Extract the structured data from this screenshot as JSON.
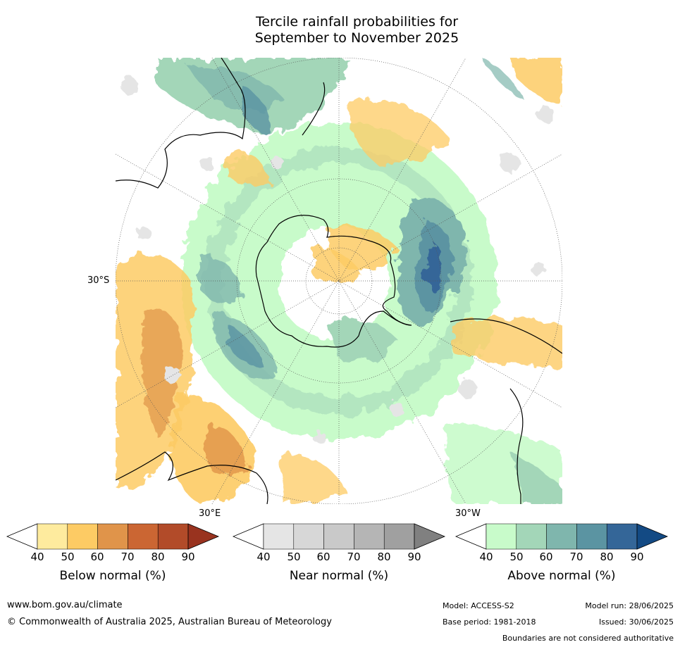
{
  "title_line1": "Tercile rainfall probabilities for",
  "title_line2": "September to November 2025",
  "map": {
    "projection": "south-polar-stereographic",
    "lat_label": "30°S",
    "lon_label_east": "30°E",
    "lon_label_west": "30°W"
  },
  "colorbars": [
    {
      "title": "Below normal (%)",
      "ticks": [
        "40",
        "50",
        "60",
        "70",
        "80",
        "90"
      ],
      "colors": [
        "#ffffff",
        "#feeb9e",
        "#fdcb64",
        "#e0944a",
        "#cb6633",
        "#b24b29",
        "#99331f"
      ]
    },
    {
      "title": "Near normal (%)",
      "ticks": [
        "40",
        "50",
        "60",
        "70",
        "80",
        "90"
      ],
      "colors": [
        "#ffffff",
        "#e5e5e5",
        "#d7d7d7",
        "#c9c9c9",
        "#b5b5b5",
        "#a0a0a0",
        "#808080"
      ]
    },
    {
      "title": "Above normal (%)",
      "ticks": [
        "40",
        "50",
        "60",
        "70",
        "80",
        "90"
      ],
      "colors": [
        "#ffffff",
        "#c8fbca",
        "#a3d6b8",
        "#7fb6ad",
        "#5b94a2",
        "#346698",
        "#134a84"
      ]
    }
  ],
  "footer": {
    "website": "www.bom.gov.au/climate",
    "copyright": "© Commonwealth of Australia 2025, Australian Bureau of Meteorology",
    "model": "Model: ACCESS-S2",
    "base_period": "Base period: 1981-2018",
    "model_run": "Model run: 28/06/2025",
    "issued": "Issued: 30/06/2025",
    "disclaimer": "Boundaries are not considered authoritative"
  }
}
